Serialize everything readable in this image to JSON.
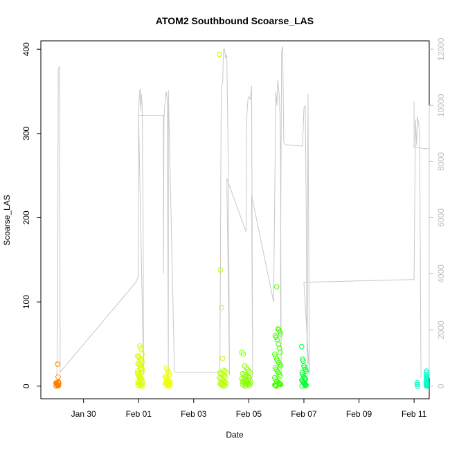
{
  "chart_data": {
    "type": "scatter",
    "title": "ATOM2 Southbound Scoarse_LAS",
    "xlabel": "Date",
    "ylabel": "Scoarse_LAS",
    "x_ticks": [
      "Jan 30",
      "Feb 01",
      "Feb 03",
      "Feb 05",
      "Feb 07",
      "Feb 09",
      "Feb 11"
    ],
    "x_tick_days": [
      30,
      32,
      34,
      36,
      38,
      40,
      42
    ],
    "xlim": [
      28.45,
      42.55
    ],
    "ylim": [
      -15,
      410
    ],
    "y_ticks": [
      0,
      100,
      200,
      300,
      400
    ],
    "y2lim": [
      -450,
      12300
    ],
    "y2_ticks": [
      0,
      2000,
      4000,
      6000,
      8000,
      10000,
      12000
    ],
    "grid": false,
    "secondary_line_color": "#c8c8c8",
    "clusters": [
      {
        "day": 29.05,
        "spread": 0.05,
        "color": "#ff8000",
        "values": [
          0,
          0.5,
          1,
          1.5,
          2,
          2.5,
          3,
          3.5,
          4,
          4.5,
          0.8,
          1.8,
          2.8,
          3.8,
          5,
          11,
          26
        ]
      },
      {
        "day": 32.05,
        "spread": 0.09,
        "color": "#dcff00",
        "values": [
          0,
          1,
          2,
          3,
          4,
          5,
          6,
          8,
          10,
          12,
          14,
          16,
          18,
          20,
          22,
          24,
          25,
          26,
          27,
          28,
          30,
          31,
          32,
          34,
          35,
          36,
          38,
          44,
          46,
          48,
          0.5,
          1.5,
          2.5,
          3.5,
          7,
          9,
          11,
          13,
          15,
          17,
          19,
          21
        ]
      },
      {
        "day": 33.05,
        "spread": 0.09,
        "color": "#eeff00",
        "values": [
          0,
          1,
          2,
          3,
          4,
          5,
          6,
          7,
          8,
          9,
          10,
          12,
          14,
          16,
          18,
          20,
          22,
          0.5,
          1.5,
          2.5,
          3.5,
          4.5,
          5.5
        ]
      },
      {
        "day": 35.05,
        "spread": 0.12,
        "color": "#b8ff00",
        "values": [
          0,
          1,
          2,
          3,
          4,
          5,
          6,
          7,
          8,
          9,
          10,
          11,
          12,
          13,
          14,
          15,
          16,
          17,
          18,
          19,
          33,
          93,
          138,
          394,
          0.5,
          1.5,
          2.5,
          3.5,
          4.5
        ]
      },
      {
        "day": 35.9,
        "spread": 0.15,
        "color": "#88ff00",
        "values": [
          0,
          1,
          2,
          3,
          4,
          5,
          6,
          7,
          8,
          9,
          10,
          11,
          12,
          13,
          14,
          15,
          16,
          18,
          20,
          22,
          24,
          38,
          40,
          0.5,
          1.5,
          2.5,
          3.5,
          4.5,
          5.5,
          6.5,
          7.5
        ]
      },
      {
        "day": 37.05,
        "spread": 0.11,
        "color": "#44ff00",
        "values": [
          0,
          1,
          2,
          3,
          4,
          5,
          6,
          8,
          10,
          12,
          14,
          16,
          18,
          20,
          22,
          24,
          26,
          28,
          30,
          32,
          35,
          38,
          40,
          45,
          50,
          55,
          58,
          60,
          62,
          65,
          67,
          68,
          118,
          0.5,
          1.5,
          2.5,
          3.5
        ]
      },
      {
        "day": 38.0,
        "spread": 0.08,
        "color": "#00ff2a",
        "values": [
          0,
          1,
          2,
          3,
          4,
          5,
          6,
          7,
          8,
          9,
          10,
          12,
          14,
          16,
          18,
          20,
          22,
          24,
          30,
          32,
          47,
          0.5,
          1.5,
          2.5
        ]
      },
      {
        "day": 42.1,
        "spread": 0.03,
        "color": "#00ffbb",
        "values": [
          0,
          2,
          4
        ]
      },
      {
        "day": 42.95,
        "spread": 0.12,
        "color": "#00ffcc",
        "values": [
          0,
          1,
          2,
          3,
          4,
          5,
          6,
          7,
          8,
          9,
          10,
          12,
          14,
          16,
          18,
          0.5,
          1.5,
          2.5,
          3.5,
          4.5
        ]
      }
    ],
    "secondary_line": [
      [
        29.03,
        400
      ],
      [
        29.06,
        2200
      ],
      [
        29.08,
        11300
      ],
      [
        29.11,
        11350
      ],
      [
        29.13,
        11400
      ],
      [
        29.15,
        500
      ],
      [
        31.9,
        3700
      ],
      [
        31.99,
        3900
      ],
      [
        32.0,
        9650
      ],
      [
        32.02,
        10200
      ],
      [
        32.04,
        10500
      ],
      [
        32.06,
        10600
      ],
      [
        32.08,
        9800
      ],
      [
        32.1,
        10400
      ],
      [
        32.13,
        10000
      ],
      [
        32.16,
        6300
      ],
      [
        32.18,
        400
      ],
      [
        32.0,
        9650
      ],
      [
        32.9,
        9650
      ],
      [
        32.9,
        4000
      ],
      [
        32.92,
        9500
      ],
      [
        32.94,
        9900
      ],
      [
        33.0,
        10500
      ],
      [
        33.04,
        10200
      ],
      [
        33.08,
        300
      ],
      [
        33.08,
        10550
      ],
      [
        33.3,
        500
      ],
      [
        34.95,
        500
      ],
      [
        35.0,
        10700
      ],
      [
        35.05,
        10800
      ],
      [
        35.08,
        12000
      ],
      [
        35.12,
        12000
      ],
      [
        35.15,
        11700
      ],
      [
        35.2,
        11800
      ],
      [
        35.26,
        7400
      ],
      [
        35.3,
        400
      ],
      [
        35.2,
        7400
      ],
      [
        35.9,
        5500
      ],
      [
        35.92,
        9500
      ],
      [
        35.95,
        10000
      ],
      [
        35.98,
        10300
      ],
      [
        36.02,
        10300
      ],
      [
        36.06,
        10200
      ],
      [
        36.1,
        10700
      ],
      [
        36.14,
        300
      ],
      [
        36.1,
        6800
      ],
      [
        36.9,
        3000
      ],
      [
        36.98,
        10500
      ],
      [
        37.02,
        10000
      ],
      [
        37.05,
        10900
      ],
      [
        37.1,
        10400
      ],
      [
        37.13,
        9700
      ],
      [
        37.15,
        8650
      ],
      [
        37.18,
        400
      ],
      [
        37.15,
        3500
      ],
      [
        37.19,
        11900
      ],
      [
        37.23,
        12100
      ],
      [
        37.27,
        8700
      ],
      [
        37.33,
        8600
      ],
      [
        37.95,
        8550
      ],
      [
        38.0,
        9900
      ],
      [
        38.05,
        10000
      ],
      [
        38.08,
        6500
      ],
      [
        38.12,
        200
      ],
      [
        38.15,
        10400
      ],
      [
        38.2,
        400
      ],
      [
        38.0,
        3700
      ],
      [
        42.0,
        3800
      ],
      [
        42.05,
        9500
      ],
      [
        42.09,
        8600
      ],
      [
        42.12,
        9600
      ],
      [
        42.16,
        9400
      ],
      [
        42.2,
        9000
      ],
      [
        42.25,
        300
      ]
    ],
    "secondary_line_b": [
      [
        41.97,
        10100
      ],
      [
        42.0,
        10100
      ],
      [
        42.0,
        8500
      ],
      [
        42.95,
        8450
      ],
      [
        42.97,
        9000
      ],
      [
        43.0,
        10000
      ],
      [
        43.04,
        9800
      ],
      [
        43.06,
        9200
      ],
      [
        43.08,
        6000
      ],
      [
        43.1,
        500
      ],
      [
        43.12,
        8400
      ],
      [
        43.15,
        300
      ]
    ]
  }
}
